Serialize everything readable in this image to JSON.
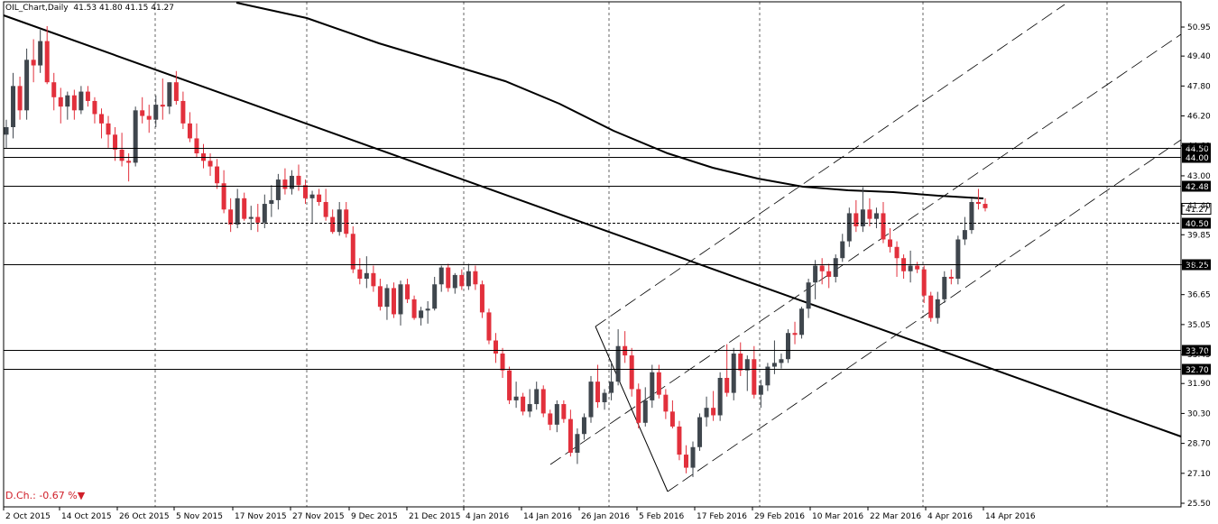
{
  "header": {
    "symbol_tf": "OIL_Chart,Daily",
    "ohlc": "41.53 41.80 41.15 41.27"
  },
  "indicator": {
    "label": "D.Ch.:",
    "value": "-0.67 %",
    "arrow": "▼"
  },
  "colors": {
    "bull": "#3f464d",
    "bear": "#e2303c",
    "grid": "#000000",
    "line": "#000000",
    "price_box_bg": "#000000",
    "price_box_fg": "#ffffff",
    "current_box_bg": "#ffffff"
  },
  "chart_data": {
    "type": "candlestick",
    "ylim": [
      25.5,
      51.5
    ],
    "yticks": [
      "50.95",
      "49.40",
      "47.80",
      "46.20",
      "44.60",
      "43.00",
      "41.40",
      "39.85",
      "38.25",
      "36.65",
      "35.05",
      "33.45",
      "31.90",
      "30.30",
      "28.70",
      "27.10",
      "25.50"
    ],
    "x_dates": [
      "2 Oct 2015",
      "14 Oct 2015",
      "26 Oct 2015",
      "5 Nov 2015",
      "17 Nov 2015",
      "27 Nov 2015",
      "9 Dec 2015",
      "21 Dec 2015",
      "4 Jan 2016",
      "14 Jan 2016",
      "26 Jan 2016",
      "5 Feb 2016",
      "17 Feb 2016",
      "29 Feb 2016",
      "10 Mar 2016",
      "22 Mar 2016",
      "4 Apr 2016",
      "14 Apr 2016"
    ],
    "grid_dates": [
      "26 Oct 2015",
      "27 Nov 2015",
      "4 Jan 2016",
      "5 Feb 2016",
      "10 Mar 2016",
      "14 Apr 2016"
    ],
    "horizontal_levels": [
      {
        "price": 44.5,
        "label": "44.50"
      },
      {
        "price": 44.0,
        "label": "44.00"
      },
      {
        "price": 42.48,
        "label": "42.48"
      },
      {
        "price": 40.5,
        "label": "40.50"
      },
      {
        "price": 38.25,
        "label": "38.25"
      },
      {
        "price": 33.7,
        "label": "33.70"
      },
      {
        "price": 32.7,
        "label": "32.70"
      }
    ],
    "current_price": {
      "price": 41.27,
      "label": "41.27"
    },
    "candles": [
      [
        45.2,
        46.0,
        44.5,
        45.6
      ],
      [
        45.6,
        48.5,
        45.0,
        47.8
      ],
      [
        47.8,
        48.3,
        46.0,
        46.5
      ],
      [
        46.5,
        49.8,
        46.0,
        49.2
      ],
      [
        49.2,
        50.3,
        48.0,
        48.9
      ],
      [
        48.9,
        50.8,
        48.5,
        50.2
      ],
      [
        50.2,
        51.0,
        47.9,
        48.0
      ],
      [
        48.0,
        48.5,
        46.5,
        47.2
      ],
      [
        47.2,
        47.7,
        45.8,
        46.7
      ],
      [
        46.7,
        47.5,
        46.0,
        47.3
      ],
      [
        47.3,
        47.6,
        46.0,
        46.5
      ],
      [
        46.5,
        47.8,
        46.3,
        47.5
      ],
      [
        47.5,
        47.8,
        46.7,
        47.0
      ],
      [
        47.0,
        47.2,
        45.8,
        46.3
      ],
      [
        46.3,
        46.6,
        45.0,
        45.8
      ],
      [
        45.8,
        46.2,
        44.5,
        45.2
      ],
      [
        45.2,
        45.6,
        43.8,
        44.4
      ],
      [
        44.4,
        45.3,
        43.5,
        43.8
      ],
      [
        43.8,
        44.2,
        42.7,
        43.7
      ],
      [
        43.7,
        46.7,
        43.5,
        46.5
      ],
      [
        46.5,
        47.2,
        45.8,
        46.2
      ],
      [
        46.2,
        46.8,
        45.3,
        46.0
      ],
      [
        46.0,
        47.3,
        45.6,
        46.8
      ],
      [
        46.8,
        48.2,
        46.0,
        46.7
      ],
      [
        46.7,
        48.0,
        46.3,
        48.0
      ],
      [
        48.0,
        48.6,
        46.8,
        47.0
      ],
      [
        47.0,
        47.5,
        45.5,
        45.8
      ],
      [
        45.8,
        46.4,
        44.8,
        45.0
      ],
      [
        45.0,
        45.8,
        44.0,
        44.2
      ],
      [
        44.2,
        44.7,
        43.4,
        43.8
      ],
      [
        43.8,
        44.2,
        43.0,
        43.5
      ],
      [
        43.5,
        43.9,
        42.3,
        42.6
      ],
      [
        42.6,
        43.3,
        41.0,
        41.2
      ],
      [
        41.2,
        41.8,
        40.0,
        40.4
      ],
      [
        40.4,
        42.3,
        40.2,
        41.8
      ],
      [
        41.8,
        42.1,
        40.6,
        40.7
      ],
      [
        40.7,
        41.4,
        40.1,
        40.8
      ],
      [
        40.8,
        41.5,
        40.0,
        40.5
      ],
      [
        40.5,
        42.0,
        40.2,
        41.5
      ],
      [
        41.5,
        42.5,
        40.8,
        41.7
      ],
      [
        41.7,
        43.1,
        41.2,
        42.8
      ],
      [
        42.8,
        43.4,
        42.0,
        42.3
      ],
      [
        42.3,
        43.3,
        42.0,
        43.0
      ],
      [
        43.0,
        43.6,
        42.2,
        42.5
      ],
      [
        42.5,
        42.8,
        41.5,
        41.8
      ],
      [
        41.8,
        42.2,
        40.5,
        42.0
      ],
      [
        42.0,
        42.3,
        41.4,
        41.6
      ],
      [
        41.6,
        42.3,
        40.6,
        40.8
      ],
      [
        40.8,
        41.2,
        39.9,
        40.0
      ],
      [
        40.0,
        41.6,
        39.8,
        41.2
      ],
      [
        41.2,
        41.6,
        39.7,
        39.9
      ],
      [
        39.9,
        40.3,
        37.8,
        38.0
      ],
      [
        38.0,
        38.6,
        37.2,
        37.5
      ],
      [
        37.5,
        38.7,
        37.0,
        37.8
      ],
      [
        37.8,
        38.2,
        36.8,
        37.1
      ],
      [
        37.1,
        37.5,
        35.8,
        36.0
      ],
      [
        36.0,
        37.2,
        35.3,
        37.0
      ],
      [
        37.0,
        37.3,
        35.4,
        35.6
      ],
      [
        35.6,
        37.4,
        35.0,
        37.2
      ],
      [
        37.2,
        37.5,
        36.2,
        36.4
      ],
      [
        36.4,
        36.6,
        35.3,
        35.4
      ],
      [
        35.4,
        36.0,
        35.0,
        35.8
      ],
      [
        35.8,
        36.3,
        35.1,
        35.9
      ],
      [
        35.9,
        37.6,
        35.8,
        37.2
      ],
      [
        37.2,
        38.2,
        36.8,
        38.1
      ],
      [
        38.1,
        38.3,
        36.8,
        37.0
      ],
      [
        37.0,
        37.8,
        36.7,
        37.7
      ],
      [
        37.7,
        38.0,
        36.9,
        37.1
      ],
      [
        37.1,
        38.3,
        36.9,
        37.9
      ],
      [
        37.9,
        38.2,
        36.9,
        37.2
      ],
      [
        37.2,
        37.4,
        35.4,
        35.7
      ],
      [
        35.7,
        35.9,
        34.0,
        34.2
      ],
      [
        34.2,
        34.6,
        33.0,
        33.5
      ],
      [
        33.5,
        33.8,
        32.2,
        32.6
      ],
      [
        32.6,
        32.8,
        30.8,
        31.0
      ],
      [
        31.0,
        32.0,
        30.6,
        31.2
      ],
      [
        31.2,
        31.4,
        30.2,
        30.4
      ],
      [
        30.4,
        31.6,
        30.1,
        30.8
      ],
      [
        30.8,
        32.0,
        30.5,
        31.6
      ],
      [
        31.6,
        31.8,
        30.1,
        30.3
      ],
      [
        30.3,
        30.5,
        29.4,
        29.7
      ],
      [
        29.7,
        31.0,
        29.3,
        30.8
      ],
      [
        30.8,
        31.0,
        29.8,
        30.0
      ],
      [
        30.0,
        30.5,
        28.0,
        28.2
      ],
      [
        28.2,
        29.5,
        27.6,
        29.2
      ],
      [
        29.2,
        30.3,
        28.9,
        30.1
      ],
      [
        30.1,
        32.3,
        29.8,
        32.0
      ],
      [
        32.0,
        32.9,
        30.6,
        30.9
      ],
      [
        30.9,
        31.6,
        30.5,
        31.4
      ],
      [
        31.4,
        33.1,
        31.0,
        32.0
      ],
      [
        32.0,
        34.8,
        31.8,
        33.9
      ],
      [
        33.9,
        34.7,
        33.0,
        33.4
      ],
      [
        33.4,
        33.8,
        31.2,
        31.6
      ],
      [
        31.6,
        31.9,
        29.5,
        29.8
      ],
      [
        29.8,
        31.7,
        29.6,
        31.0
      ],
      [
        31.0,
        32.9,
        30.6,
        32.5
      ],
      [
        32.5,
        32.9,
        31.1,
        31.3
      ],
      [
        31.3,
        31.6,
        30.0,
        30.4
      ],
      [
        30.4,
        31.0,
        29.5,
        29.6
      ],
      [
        29.6,
        29.9,
        27.8,
        28.1
      ],
      [
        28.1,
        28.6,
        27.1,
        27.4
      ],
      [
        27.4,
        28.8,
        26.9,
        28.5
      ],
      [
        28.5,
        30.3,
        28.3,
        30.1
      ],
      [
        30.1,
        31.2,
        29.6,
        30.6
      ],
      [
        30.6,
        31.5,
        29.9,
        30.2
      ],
      [
        30.2,
        32.5,
        29.9,
        32.2
      ],
      [
        32.2,
        34.0,
        31.2,
        31.4
      ],
      [
        31.4,
        33.8,
        31.0,
        33.5
      ],
      [
        33.5,
        34.1,
        32.3,
        32.6
      ],
      [
        32.6,
        33.4,
        31.5,
        33.2
      ],
      [
        33.2,
        33.9,
        31.1,
        31.3
      ],
      [
        31.3,
        32.1,
        30.6,
        31.8
      ],
      [
        31.8,
        33.0,
        31.5,
        32.8
      ],
      [
        32.8,
        34.2,
        32.4,
        33.0
      ],
      [
        33.0,
        33.5,
        32.7,
        33.2
      ],
      [
        33.2,
        34.8,
        33.0,
        34.6
      ],
      [
        34.6,
        35.2,
        34.0,
        34.5
      ],
      [
        34.5,
        36.0,
        34.3,
        35.9
      ],
      [
        35.9,
        37.5,
        35.4,
        37.3
      ],
      [
        37.3,
        38.5,
        36.4,
        38.2
      ],
      [
        38.2,
        38.6,
        37.2,
        37.9
      ],
      [
        37.9,
        38.3,
        37.0,
        37.6
      ],
      [
        37.6,
        38.8,
        37.3,
        38.6
      ],
      [
        38.6,
        39.9,
        38.4,
        39.5
      ],
      [
        39.5,
        41.3,
        39.2,
        41.0
      ],
      [
        41.0,
        41.7,
        40.0,
        40.3
      ],
      [
        40.3,
        42.4,
        40.0,
        41.2
      ],
      [
        41.2,
        41.8,
        40.3,
        40.7
      ],
      [
        40.7,
        41.3,
        40.2,
        41.0
      ],
      [
        41.0,
        41.6,
        39.4,
        39.6
      ],
      [
        39.6,
        40.2,
        38.9,
        39.2
      ],
      [
        39.2,
        39.5,
        37.6,
        38.6
      ],
      [
        38.6,
        38.8,
        37.5,
        37.9
      ],
      [
        37.9,
        39.0,
        37.3,
        38.2
      ],
      [
        38.2,
        38.4,
        37.8,
        38.0
      ],
      [
        38.0,
        38.2,
        36.2,
        36.6
      ],
      [
        36.6,
        36.8,
        35.2,
        35.4
      ],
      [
        35.4,
        36.8,
        35.1,
        36.4
      ],
      [
        36.4,
        37.9,
        36.2,
        37.6
      ],
      [
        37.6,
        38.0,
        37.2,
        37.5
      ],
      [
        37.5,
        39.8,
        37.2,
        39.6
      ],
      [
        39.6,
        40.8,
        39.3,
        40.1
      ],
      [
        40.1,
        41.8,
        39.9,
        41.6
      ],
      [
        41.6,
        42.3,
        41.2,
        41.5
      ],
      [
        41.5,
        41.8,
        41.1,
        41.27
      ]
    ]
  }
}
